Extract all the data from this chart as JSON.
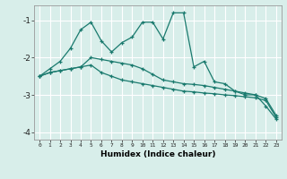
{
  "xlabel": "Humidex (Indice chaleur)",
  "background_color": "#d8eeea",
  "grid_color": "#ffffff",
  "line_color": "#1a7a6e",
  "xlim": [
    -0.5,
    23.5
  ],
  "ylim": [
    -4.2,
    -0.6
  ],
  "yticks": [
    -4,
    -3,
    -2,
    -1
  ],
  "x_ticks": [
    0,
    1,
    2,
    3,
    4,
    5,
    6,
    7,
    8,
    9,
    10,
    11,
    12,
    13,
    14,
    15,
    16,
    17,
    18,
    19,
    20,
    21,
    22,
    23
  ],
  "line1_y": [
    -2.5,
    -2.3,
    -2.1,
    -1.75,
    -1.25,
    -1.05,
    -1.55,
    -1.85,
    -1.6,
    -1.45,
    -1.05,
    -1.05,
    -1.5,
    -0.8,
    -0.8,
    -2.25,
    -2.1,
    -2.65,
    -2.7,
    -2.9,
    -3.0,
    -3.0,
    -3.3,
    -3.65
  ],
  "line2_y": [
    -2.5,
    -2.4,
    -2.35,
    -2.3,
    -2.25,
    -2.0,
    -2.05,
    -2.1,
    -2.15,
    -2.2,
    -2.3,
    -2.45,
    -2.6,
    -2.65,
    -2.7,
    -2.72,
    -2.75,
    -2.8,
    -2.85,
    -2.9,
    -2.95,
    -3.0,
    -3.1,
    -3.55
  ],
  "line3_y": [
    -2.5,
    -2.4,
    -2.35,
    -2.3,
    -2.25,
    -2.2,
    -2.4,
    -2.5,
    -2.6,
    -2.65,
    -2.7,
    -2.75,
    -2.8,
    -2.85,
    -2.9,
    -2.92,
    -2.95,
    -2.97,
    -3.0,
    -3.02,
    -3.05,
    -3.08,
    -3.15,
    -3.6
  ]
}
